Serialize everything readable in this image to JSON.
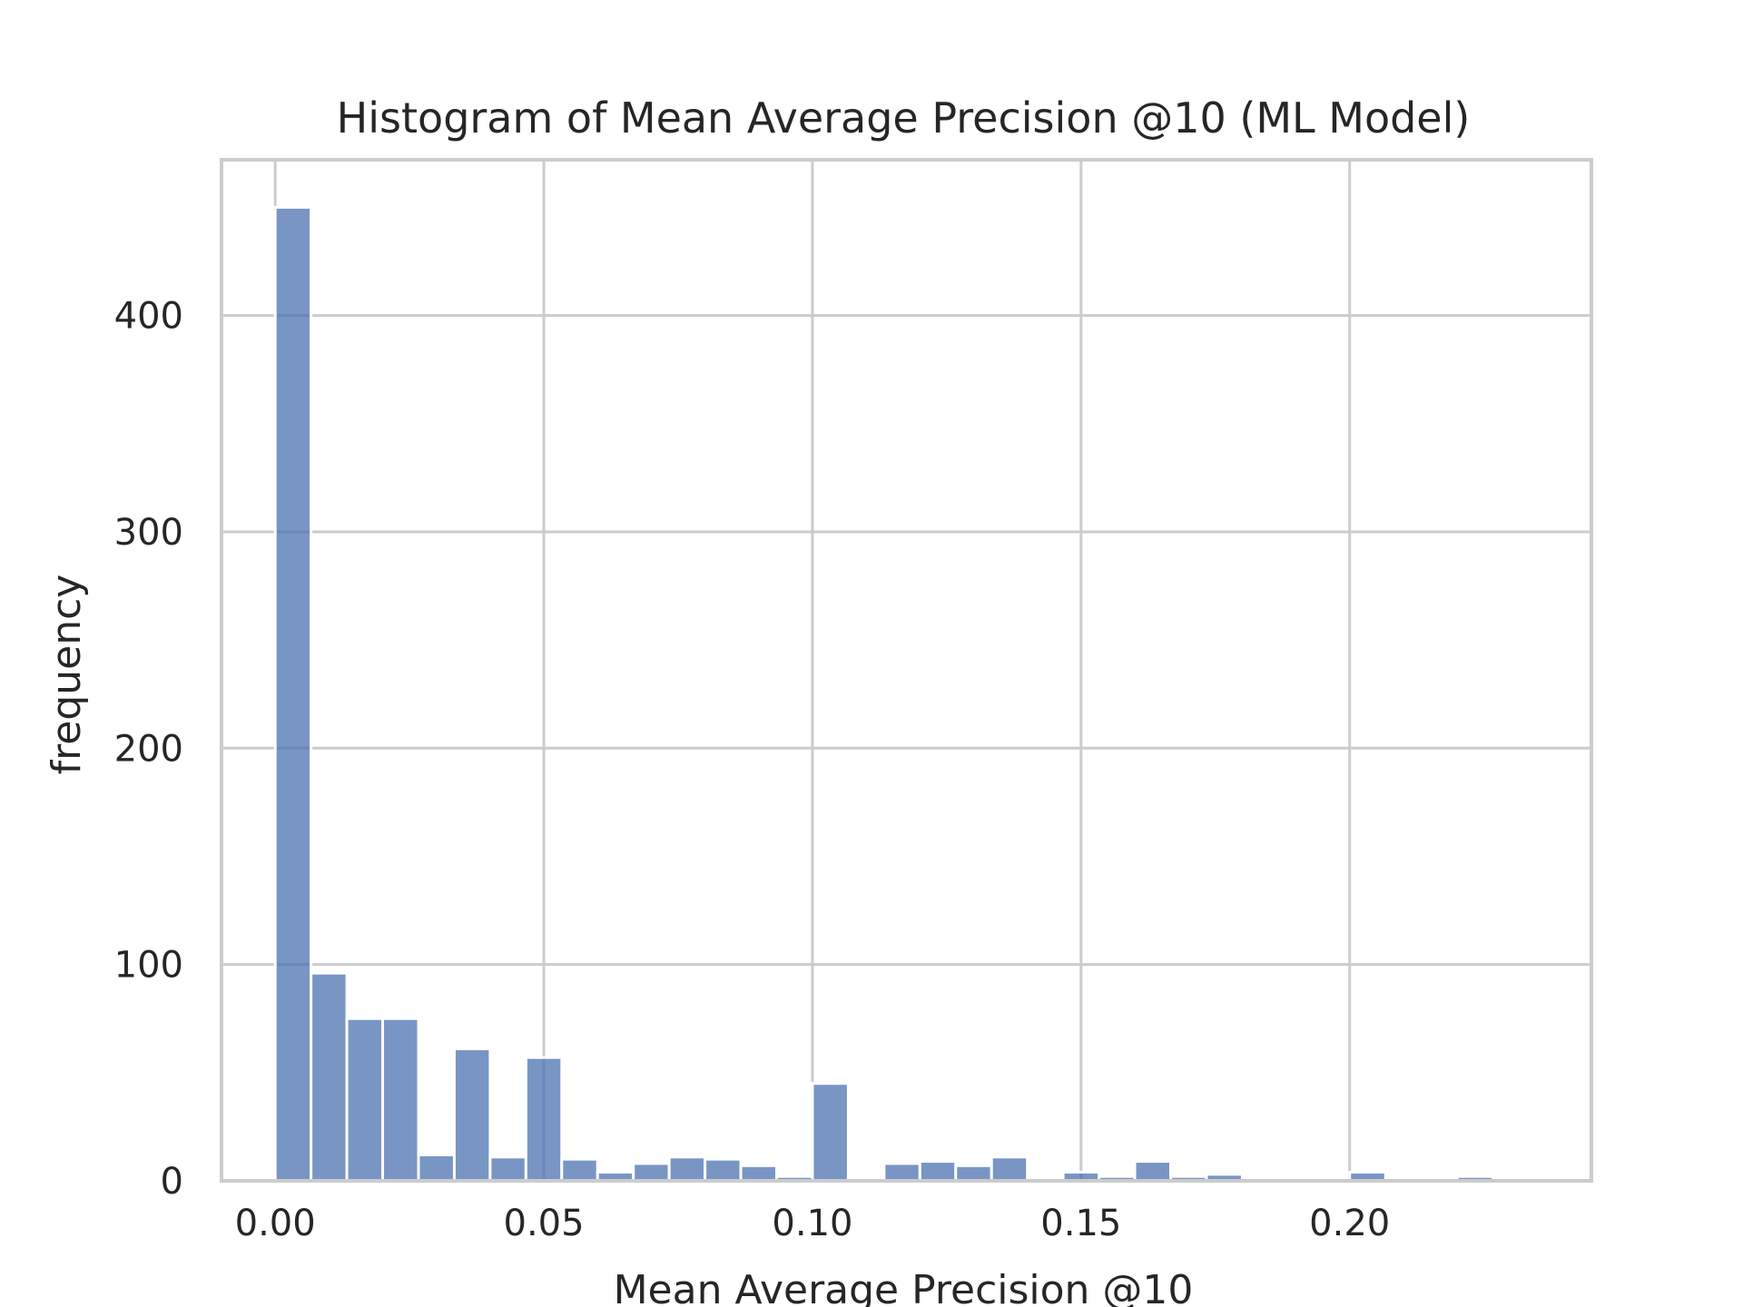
{
  "colors": {
    "bar": "#4c72b0",
    "bar_opacity": 0.75,
    "grid": "#cccccc",
    "text": "#262626",
    "background": "#ffffff"
  },
  "chart_data": {
    "type": "bar",
    "subtype": "histogram",
    "title": "Histogram of Mean Average Precision @10 (ML Model)",
    "xlabel": "Mean Average Precision @10",
    "ylabel": "frequency",
    "xlim": [
      -0.01,
      0.245
    ],
    "ylim": [
      0,
      472
    ],
    "grid": true,
    "legend": "none",
    "x_ticks": [
      {
        "value": 0.0,
        "label": "0.00"
      },
      {
        "value": 0.05,
        "label": "0.05"
      },
      {
        "value": 0.1,
        "label": "0.10"
      },
      {
        "value": 0.15,
        "label": "0.15"
      },
      {
        "value": 0.2,
        "label": "0.20"
      }
    ],
    "y_ticks": [
      {
        "value": 0,
        "label": "0"
      },
      {
        "value": 100,
        "label": "100"
      },
      {
        "value": 200,
        "label": "200"
      },
      {
        "value": 300,
        "label": "300"
      },
      {
        "value": 400,
        "label": "400"
      }
    ],
    "bin_start": 0.0,
    "bin_width": 0.006667,
    "values": [
      450,
      96,
      75,
      75,
      12,
      61,
      11,
      57,
      10,
      4,
      8,
      11,
      10,
      7,
      2,
      45,
      0,
      8,
      9,
      7,
      11,
      0,
      4,
      2,
      9,
      2,
      3,
      0,
      0,
      0,
      4,
      0,
      0,
      2,
      0
    ]
  }
}
